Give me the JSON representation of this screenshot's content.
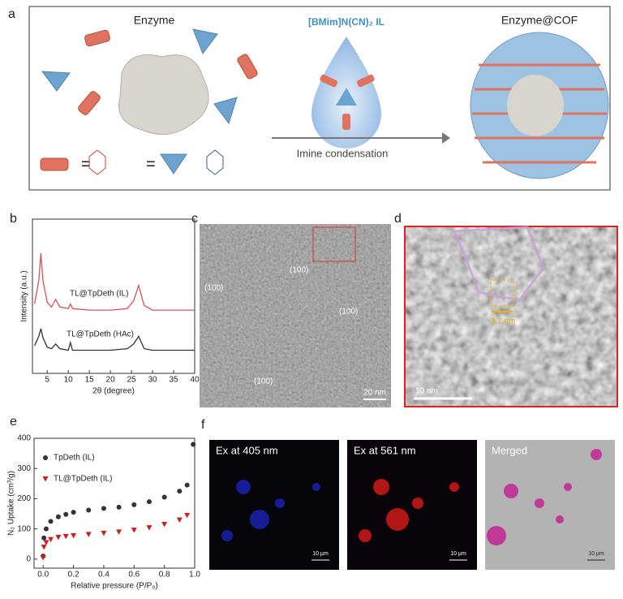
{
  "panel_a": {
    "label": "a",
    "enzyme": "Enzyme",
    "solvent": "[BMim]N(CN)₂ IL",
    "product": "Enzyme@COF",
    "arrow_label": "Imine condensation"
  },
  "panel_c": {
    "label": "c",
    "lattice_labels": [
      "(100)",
      "(100)",
      "(100)",
      "(100)"
    ],
    "scale_bar": "20 nm"
  },
  "panel_d": {
    "label": "d",
    "spacing": "3.1 nm",
    "scale_bar": "10 nm"
  },
  "panel_f": {
    "label": "f",
    "images": [
      {
        "title": "Ex at 405 nm",
        "scale_bar": "10 μm"
      },
      {
        "title": "Ex at 561 nm",
        "scale_bar": "10 μm"
      },
      {
        "title": "Merged",
        "scale_bar": "10 μm"
      }
    ]
  },
  "chart_data": [
    {
      "type": "line",
      "label": "b",
      "xlabel": "2θ (degree)",
      "ylabel": "Intensity (a.u.)",
      "x": [
        2,
        3,
        3.5,
        4,
        5,
        6,
        7,
        8,
        10,
        10.5,
        11,
        15,
        20,
        24,
        25.5,
        26.7,
        28,
        30,
        35,
        40
      ],
      "series": [
        {
          "name": "TL@TpDeth (IL)",
          "color": "#e05050",
          "values": [
            4.5,
            6.0,
            7.8,
            6.0,
            4.6,
            4.3,
            4.8,
            4.3,
            4.2,
            4.5,
            4.2,
            4.1,
            4.1,
            4.2,
            4.7,
            5.7,
            4.4,
            4.1,
            4.1,
            4.1
          ]
        },
        {
          "name": "TL@TpDeth (HAc)",
          "color": "#333333",
          "values": [
            1.8,
            2.4,
            2.9,
            2.3,
            1.7,
            1.6,
            1.9,
            1.6,
            1.5,
            2.0,
            1.5,
            1.5,
            1.5,
            1.6,
            1.9,
            2.4,
            1.6,
            1.5,
            1.5,
            1.5
          ]
        }
      ],
      "xlim": [
        1.5,
        40
      ],
      "ylim": [
        0,
        10
      ],
      "xticks": [
        5,
        10,
        15,
        20,
        25,
        30,
        35,
        40
      ]
    },
    {
      "type": "scatter",
      "label": "e",
      "xlabel": "Relative pressure (P/P₀)",
      "ylabel": "N₂ Uptake (cm³/g)",
      "x": [
        0,
        0.005,
        0.02,
        0.05,
        0.1,
        0.15,
        0.2,
        0.3,
        0.4,
        0.5,
        0.6,
        0.7,
        0.8,
        0.9,
        0.95,
        0.99
      ],
      "series": [
        {
          "name": "TpDeth (IL)",
          "color": "#333333",
          "marker": "circle",
          "values": [
            10,
            70,
            100,
            125,
            140,
            148,
            155,
            162,
            168,
            172,
            180,
            190,
            205,
            225,
            245,
            380
          ]
        },
        {
          "name": "TL@TpDeth (IL)",
          "color": "#cc1f1f",
          "marker": "triangle",
          "values": [
            5,
            40,
            55,
            65,
            72,
            75,
            78,
            82,
            86,
            90,
            96,
            104,
            115,
            130,
            145,
            null
          ]
        }
      ],
      "xlim": [
        -0.06,
        1.0
      ],
      "ylim": [
        -30,
        400
      ],
      "xticks": [
        {
          "value": 0,
          "label": "0.0"
        },
        0.2,
        0.4,
        0.6,
        0.8,
        {
          "value": 1,
          "label": "1.0"
        }
      ],
      "yticks": [
        0,
        100,
        200,
        300,
        400
      ],
      "legend": "upper-left"
    }
  ]
}
